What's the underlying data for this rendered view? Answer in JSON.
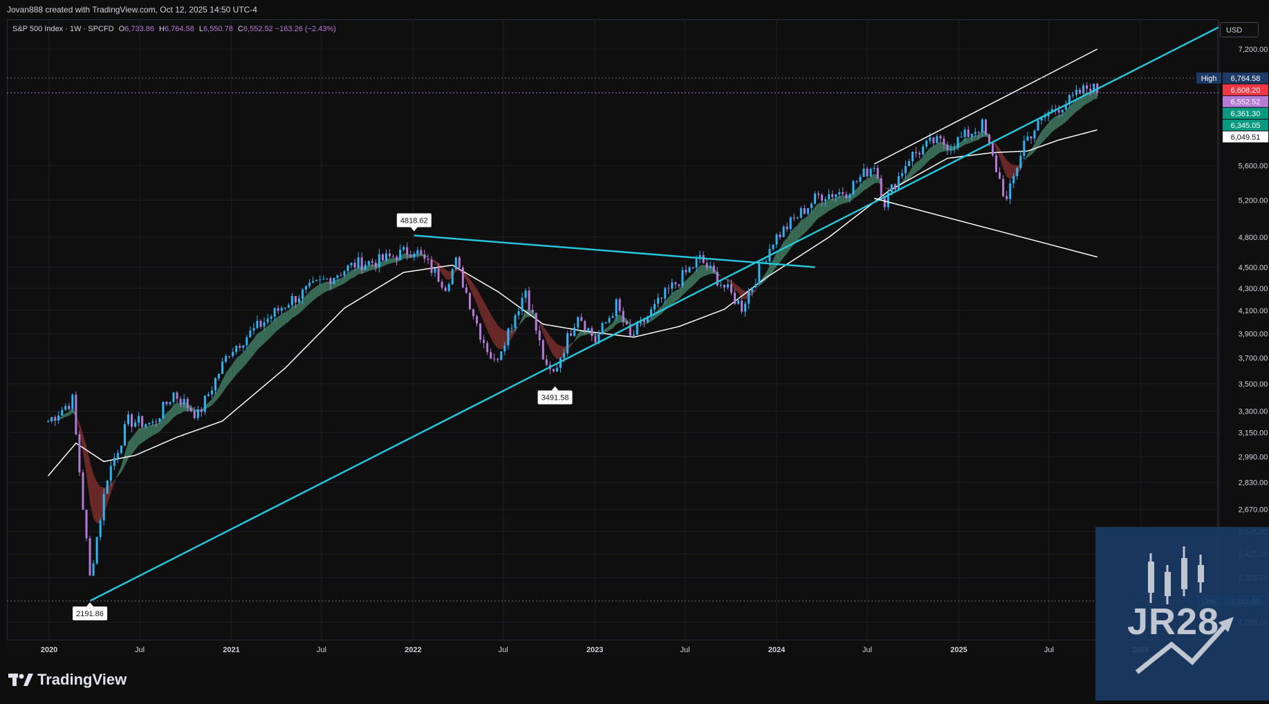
{
  "header": {
    "credit": "Jovan888 created with TradingView.com, Oct 12, 2025 14:50 UTC-4"
  },
  "legend": {
    "symbol": "S&P 500 Index · 1W · SPCFD",
    "open_label": "O",
    "open": "6,733.86",
    "high_label": "H",
    "high": "6,764.58",
    "low_label": "L",
    "low": "6,550.78",
    "close_label": "C",
    "close": "6,552.52",
    "change": "−163.26 (−2.43%)"
  },
  "currency": "USD",
  "branding": {
    "tradingview": "TradingView",
    "watermark": "JR28"
  },
  "colors": {
    "background": "#0f0f0f",
    "candle_up": "#29b6f6",
    "candle_down": "#b57bd6",
    "ribbon_up": "#3f7a62",
    "ribbon_down": "#7a2e2a",
    "trendline": "#26c6da",
    "channel": "#ffffff",
    "last_price": "#b57bd6",
    "tag_red": "#f23645",
    "tag_green": "#089981",
    "tag_high": "#1e3a66"
  },
  "chart_data": {
    "type": "line",
    "ticker": "S&P 500 Index",
    "interval": "1W",
    "source": "SPCFD",
    "y_scale": "log",
    "ylim": [
      2000,
      7500
    ],
    "grid": true,
    "x_ticks": [
      "2020",
      "Jul",
      "2021",
      "Jul",
      "2022",
      "Jul",
      "2023",
      "Jul",
      "2024",
      "Jul",
      "2025",
      "Jul",
      "2026"
    ],
    "y_ticks": [
      "7,200.00",
      "5,600.00",
      "5,200.00",
      "4,800.00",
      "4,500.00",
      "4,300.00",
      "4,100.00",
      "3,900.00",
      "3,700.00",
      "3,500.00",
      "3,300.00",
      "3,150.00",
      "2,990.00",
      "2,830.00",
      "2,670.00",
      "2,545.00",
      "2,425.00",
      "2,305.00",
      "2,095.00"
    ],
    "price_tags": [
      {
        "label": "High",
        "value": "6,764.58",
        "style": "high"
      },
      {
        "value": "6,608.20",
        "style": "red"
      },
      {
        "value": "6,552.52",
        "style": "last"
      },
      {
        "value": "6,361.30",
        "style": "green"
      },
      {
        "value": "6,345.05",
        "style": "green"
      },
      {
        "value": "6,049.51",
        "style": "white"
      },
      {
        "label": "Low",
        "value": "2,191.86",
        "style": "low"
      }
    ],
    "annotations": [
      {
        "text": "4818.62",
        "x": "2022-01-03",
        "y": 4818.62,
        "position": "above"
      },
      {
        "text": "3491.58",
        "x": "2022-10-13",
        "y": 3491.58,
        "position": "below"
      },
      {
        "text": "2191.86",
        "x": "2020-03-23",
        "y": 2191.86,
        "position": "below"
      }
    ],
    "series": [
      {
        "name": "S&P 500 weekly close",
        "x": [
          "2019-12-30",
          "2020-02-17",
          "2020-03-23",
          "2020-04-27",
          "2020-06-08",
          "2020-07-27",
          "2020-09-07",
          "2020-10-26",
          "2020-12-28",
          "2021-02-15",
          "2021-04-26",
          "2021-06-28",
          "2021-09-06",
          "2021-10-25",
          "2022-01-03",
          "2022-03-07",
          "2022-03-28",
          "2022-05-16",
          "2022-06-13",
          "2022-08-15",
          "2022-09-26",
          "2022-10-10",
          "2022-11-28",
          "2023-01-02",
          "2023-02-13",
          "2023-03-13",
          "2023-05-29",
          "2023-07-31",
          "2023-10-23",
          "2023-12-25",
          "2024-03-25",
          "2024-05-20",
          "2024-07-15",
          "2024-08-05",
          "2024-09-23",
          "2024-11-11",
          "2024-12-16",
          "2025-02-17",
          "2025-04-07",
          "2025-05-12",
          "2025-06-30",
          "2025-08-11",
          "2025-09-22",
          "2025-10-06"
        ],
        "values": [
          3230,
          3380,
          2304,
          2870,
          3230,
          3210,
          3430,
          3270,
          3756,
          3930,
          4180,
          4350,
          4530,
          4560,
          4680,
          4330,
          4550,
          3900,
          3660,
          4290,
          3600,
          3580,
          4080,
          3840,
          4150,
          3860,
          4280,
          4580,
          4130,
          4770,
          5250,
          5300,
          5620,
          5180,
          5700,
          5900,
          5860,
          6110,
          5180,
          5900,
          6280,
          6440,
          6660,
          6552
        ]
      },
      {
        "name": "Long moving average",
        "x": [
          "2019-12-30",
          "2020-02-24",
          "2020-04-20",
          "2020-06-22",
          "2020-09-14",
          "2020-12-14",
          "2021-04-19",
          "2021-08-16",
          "2021-12-13",
          "2022-03-21",
          "2022-06-20",
          "2022-09-19",
          "2022-12-12",
          "2023-03-20",
          "2023-06-19",
          "2023-09-18",
          "2023-12-11",
          "2024-04-15",
          "2024-08-12",
          "2024-12-09",
          "2025-03-10",
          "2025-05-19",
          "2025-07-21",
          "2025-10-06"
        ],
        "values": [
          2870,
          3080,
          2960,
          3000,
          3120,
          3230,
          3620,
          4120,
          4450,
          4520,
          4270,
          3980,
          3920,
          3870,
          3960,
          4110,
          4400,
          4800,
          5300,
          5690,
          5760,
          5780,
          5920,
          6049.51
        ]
      }
    ],
    "trendlines": [
      {
        "kind": "support",
        "from": {
          "x": "2020-03-23",
          "y": 2191.86
        },
        "to": {
          "x": "2025-10-06",
          "y": 6608.2
        }
      },
      {
        "kind": "resistance",
        "from": {
          "x": "2022-01-03",
          "y": 4818.62
        },
        "to": {
          "x": "2024-03-18",
          "y": 4500
        }
      },
      {
        "kind": "channel-upper",
        "from": {
          "x": "2024-07-15",
          "y": 5620
        },
        "to": {
          "x": "2025-10-06",
          "y": 7200
        }
      },
      {
        "kind": "channel-lower",
        "from": {
          "x": "2024-07-15",
          "y": 5220
        },
        "to": {
          "x": "2025-10-06",
          "y": 4600
        }
      }
    ]
  }
}
